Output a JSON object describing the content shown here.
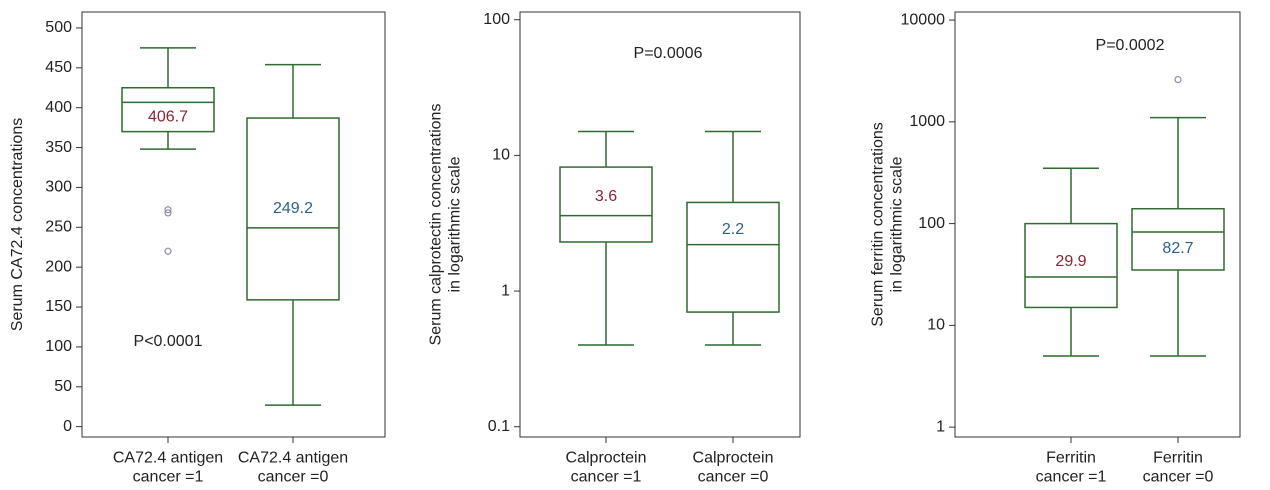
{
  "chart_data": [
    {
      "type": "box",
      "y_label": "Serum CA72.4 concentrations",
      "annotation": "P<0.0001",
      "categories": [
        "CA72.4 antigen\ncancer =1",
        "CA72.4 antigen\ncancer =0"
      ],
      "ylim": [
        -13,
        520
      ],
      "yticks": [
        0,
        50,
        100,
        150,
        200,
        250,
        300,
        350,
        400,
        450,
        500
      ],
      "log_scale": false,
      "color": "#2f6a2f",
      "label_colors": [
        "#8b2434",
        "#2f5f8c"
      ],
      "outlier_color": "#8a8cae",
      "boxes": [
        {
          "whisker_low": 348,
          "q1": 370,
          "median": 406.7,
          "q3": 425,
          "whisker_high": 475,
          "outliers": [
            272,
            268,
            220
          ]
        },
        {
          "whisker_low": 27,
          "q1": 159,
          "median": 249.2,
          "q3": 387,
          "whisker_high": 454,
          "outliers": []
        }
      ]
    },
    {
      "type": "box",
      "y_label": "Serum calprotectin concentrations\nin logarithmic scale",
      "annotation": "P=0.0006",
      "categories": [
        "Calproctein\ncancer =1",
        "Calproctein\ncancer =0"
      ],
      "ylim": [
        0.084,
        114
      ],
      "yticks": [
        0.1,
        1,
        10,
        100
      ],
      "log_scale": true,
      "color": "#2f6a2f",
      "label_colors": [
        "#8b2434",
        "#2f5f8c"
      ],
      "outlier_color": "#8a8cae",
      "boxes": [
        {
          "whisker_low": 0.4,
          "q1": 2.3,
          "median": 3.6,
          "q3": 8.2,
          "whisker_high": 15,
          "outliers": []
        },
        {
          "whisker_low": 0.4,
          "q1": 0.7,
          "median": 2.2,
          "q3": 4.5,
          "whisker_high": 15,
          "outliers": []
        }
      ]
    },
    {
      "type": "box",
      "y_label": "Serum ferritin concentrations\nin logarithmic scale",
      "annotation": "P=0.0002",
      "categories": [
        "Ferritin\ncancer =1",
        "Ferritin\ncancer =0"
      ],
      "ylim": [
        0.8,
        12000
      ],
      "yticks": [
        1,
        10,
        100,
        1000,
        10000
      ],
      "log_scale": true,
      "color": "#2f6a2f",
      "label_colors": [
        "#8b2434",
        "#2f5f8c"
      ],
      "outlier_color": "#8a8cae",
      "boxes": [
        {
          "whisker_low": 5,
          "q1": 15,
          "median": 29.9,
          "q3": 100,
          "whisker_high": 350,
          "outliers": []
        },
        {
          "whisker_low": 5,
          "q1": 35,
          "median": 82.7,
          "q3": 140,
          "whisker_high": 1100,
          "outliers": [
            2600
          ]
        }
      ]
    }
  ]
}
